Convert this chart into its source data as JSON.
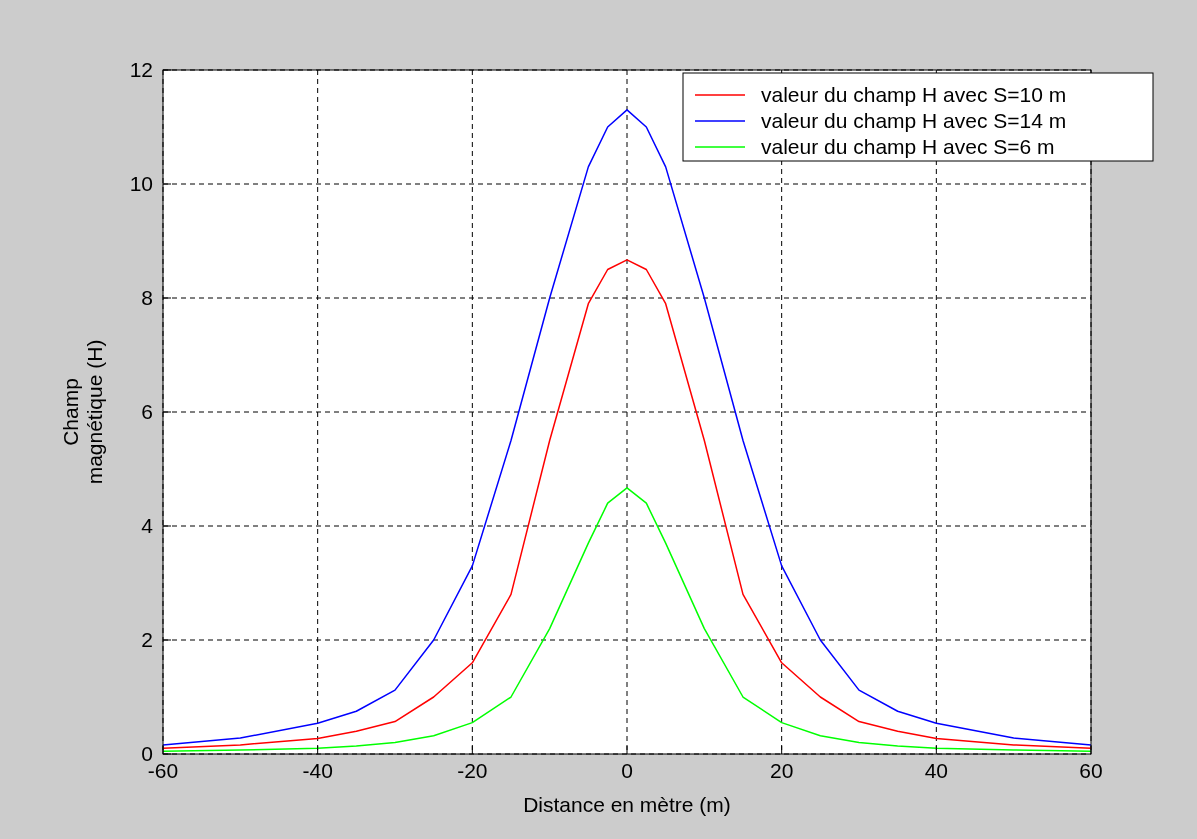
{
  "chart_data": {
    "type": "line",
    "xlabel": "Distance en mètre (m)",
    "ylabel": "Champ\nmagnétique (H)",
    "x": [
      -60,
      -50,
      -40,
      -35,
      -30,
      -25,
      -20,
      -15,
      -10,
      -5,
      -2.5,
      0,
      2.5,
      5,
      10,
      15,
      20,
      25,
      30,
      35,
      40,
      50,
      60
    ],
    "series": [
      {
        "name": "valeur du champ H avec S=10 m",
        "color": "#ff0000",
        "values": [
          0.1,
          0.16,
          0.27,
          0.4,
          0.57,
          1.0,
          1.6,
          2.8,
          5.5,
          7.9,
          8.5,
          8.67,
          8.5,
          7.9,
          5.5,
          2.8,
          1.6,
          1.0,
          0.57,
          0.4,
          0.27,
          0.16,
          0.1
        ]
      },
      {
        "name": "valeur du champ H avec S=14 m",
        "color": "#0000ff",
        "values": [
          0.16,
          0.28,
          0.54,
          0.75,
          1.12,
          2.0,
          3.3,
          5.5,
          8.0,
          10.3,
          11.0,
          11.3,
          11.0,
          10.3,
          8.0,
          5.5,
          3.3,
          2.0,
          1.12,
          0.75,
          0.54,
          0.28,
          0.16
        ]
      },
      {
        "name": "valeur du champ H avec S=6 m",
        "color": "#00ff00",
        "values": [
          0.05,
          0.07,
          0.1,
          0.14,
          0.2,
          0.32,
          0.55,
          1.0,
          2.2,
          3.7,
          4.4,
          4.67,
          4.4,
          3.7,
          2.2,
          1.0,
          0.55,
          0.32,
          0.2,
          0.14,
          0.1,
          0.07,
          0.05
        ]
      }
    ],
    "xlim": [
      -60,
      60
    ],
    "xticks": [
      -60,
      -40,
      -20,
      0,
      20,
      40,
      60
    ],
    "ylim": [
      0,
      12
    ],
    "yticks": [
      0,
      2,
      4,
      6,
      8,
      10,
      12
    ],
    "grid": true,
    "legend": "top right",
    "line_style": "solid",
    "marker": "none"
  }
}
